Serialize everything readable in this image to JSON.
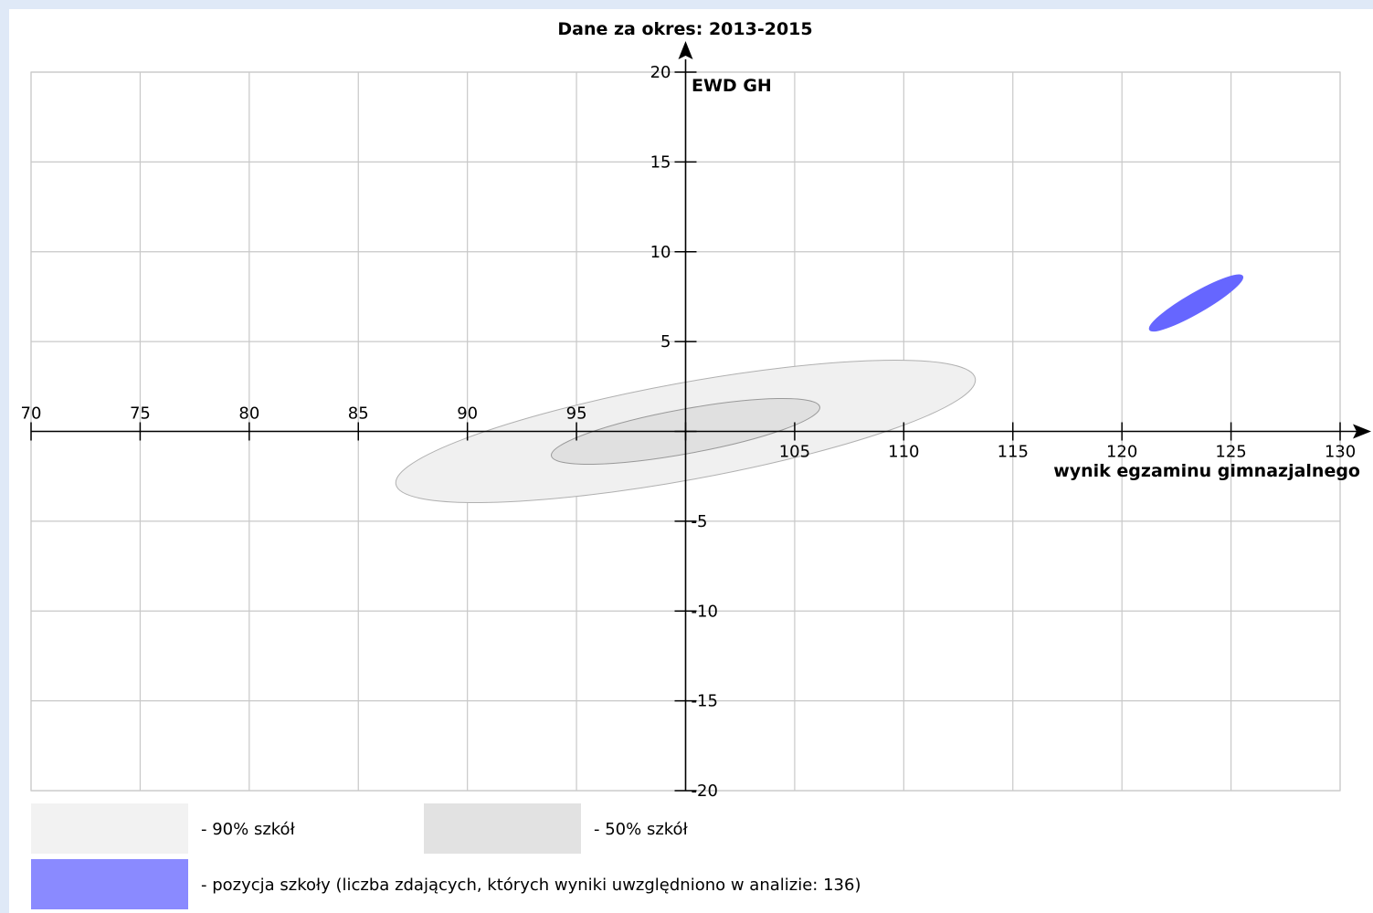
{
  "chart_data": {
    "type": "scatter",
    "title": "Dane za okres: 2013-2015",
    "xlabel": "wynik egzaminu gimnazjalnego",
    "ylabel": "EWD GH",
    "xlim": [
      70,
      130
    ],
    "ylim": [
      -20,
      20
    ],
    "x_ticks": [
      70,
      75,
      80,
      85,
      90,
      95,
      100,
      105,
      110,
      115,
      120,
      125,
      130
    ],
    "x_tick_labels": [
      "70",
      "75",
      "80",
      "85",
      "90",
      "95",
      "",
      "105",
      "110",
      "115",
      "120",
      "125",
      "130"
    ],
    "y_ticks": [
      -20,
      -15,
      -10,
      -5,
      0,
      5,
      10,
      15,
      20
    ],
    "y_tick_labels": [
      "-20",
      "-15",
      "-10",
      "-5",
      "",
      "5",
      "10",
      "15",
      "20"
    ],
    "grid": true,
    "regions": [
      {
        "name": "- 90% szkół",
        "cx": 100.0,
        "cy": 0.0,
        "rx": 13.6,
        "ry": 2.7,
        "angle": 12.5,
        "color": "#f0f0f0",
        "stroke": "#b0b0b0"
      },
      {
        "name": "- 50% szkół",
        "cx": 100.0,
        "cy": 0.0,
        "rx": 6.3,
        "ry": 1.24,
        "angle": 12.5,
        "color": "#e0e0e0",
        "stroke": "#999999"
      },
      {
        "name": "- pozycja szkoły (liczba zdających, których wyniki uwzględniono w analizie: 136)",
        "cx": 123.4,
        "cy": 7.15,
        "rx": 2.6,
        "ry": 0.55,
        "angle": 35,
        "color": "#6666ff",
        "stroke": "#6666ff"
      }
    ],
    "legend": [
      {
        "label": "- 90% szkół",
        "color": "#f2f2f2"
      },
      {
        "label": "- 50% szkół",
        "color": "#e2e2e2"
      },
      {
        "label": "- pozycja szkoły (liczba zdających, których wyniki uwzględniono w analizie: 136)",
        "color": "#8a8aff"
      }
    ]
  }
}
